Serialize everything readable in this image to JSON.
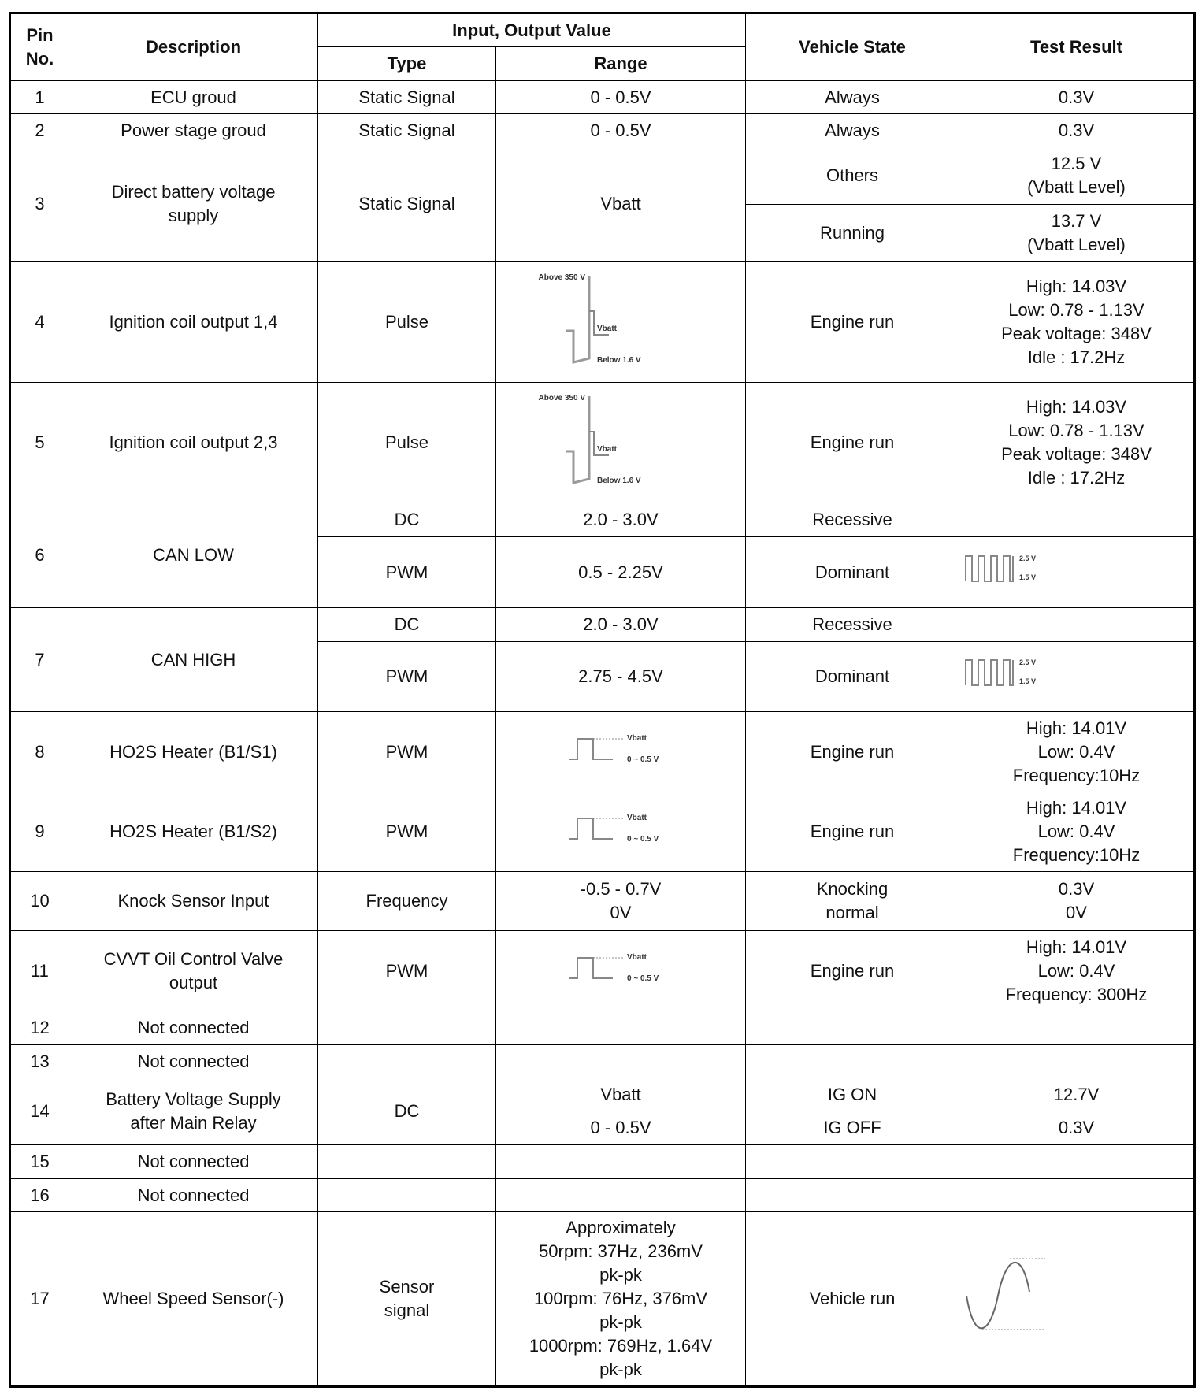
{
  "header": {
    "pin": "Pin\nNo.",
    "description": "Description",
    "io": "Input, Output Value",
    "type": "Type",
    "range": "Range",
    "vehicle_state": "Vehicle State",
    "test_result": "Test Result"
  },
  "rows": [
    {
      "pin": "1",
      "desc": "ECU groud",
      "type": "Static Signal",
      "range": "0 - 0.5V",
      "state": "Always",
      "result": "0.3V"
    },
    {
      "pin": "2",
      "desc": "Power stage groud",
      "type": "Static Signal",
      "range": "0 - 0.5V",
      "state": "Always",
      "result": "0.3V"
    },
    {
      "pin": "3",
      "desc": "Direct battery voltage\nsupply",
      "type": "Static Signal",
      "range": "Vbatt",
      "state_a": "Others",
      "result_a": "12.5 V\n(Vbatt Level)",
      "state_b": "Running",
      "result_b": "13.7 V\n(Vbatt Level)"
    },
    {
      "pin": "4",
      "desc": "Ignition coil output 1,4",
      "type": "Pulse",
      "wave": {
        "top": "Above 350 V",
        "mid": "Vbatt",
        "bottom": "Below 1.6 V"
      },
      "state": "Engine run",
      "result": "High: 14.03V\nLow: 0.78 - 1.13V\nPeak voltage: 348V\nIdle : 17.2Hz"
    },
    {
      "pin": "5",
      "desc": "Ignition coil output 2,3",
      "type": "Pulse",
      "wave": {
        "top": "Above 350 V",
        "mid": "Vbatt",
        "bottom": "Below 1.6 V"
      },
      "state": "Engine run",
      "result": "High: 14.03V\nLow: 0.78 - 1.13V\nPeak voltage: 348V\nIdle : 17.2Hz"
    },
    {
      "pin": "6",
      "desc": "CAN LOW",
      "type_a": "DC",
      "range_a": "2.0 - 3.0V",
      "state_a": "Recessive",
      "result_a": "",
      "type_b": "PWM",
      "range_b": "0.5 - 2.25V",
      "state_b": "Dominant",
      "wave": {
        "high": "2.5 V",
        "low": "1.5 V"
      }
    },
    {
      "pin": "7",
      "desc": "CAN HIGH",
      "type_a": "DC",
      "range_a": "2.0 - 3.0V",
      "state_a": "Recessive",
      "result_a": "",
      "type_b": "PWM",
      "range_b": "2.75 - 4.5V",
      "state_b": "Dominant",
      "wave": {
        "high": "2.5 V",
        "low": "1.5 V"
      }
    },
    {
      "pin": "8",
      "desc": "HO2S Heater (B1/S1)",
      "type": "PWM",
      "wave": {
        "high": "Vbatt",
        "low": "0 ~ 0.5 V"
      },
      "state": "Engine run",
      "result": "High: 14.01V\nLow: 0.4V\nFrequency:10Hz"
    },
    {
      "pin": "9",
      "desc": "HO2S Heater (B1/S2)",
      "type": "PWM",
      "wave": {
        "high": "Vbatt",
        "low": "0 ~ 0.5 V"
      },
      "state": "Engine run",
      "result": "High: 14.01V\nLow: 0.4V\nFrequency:10Hz"
    },
    {
      "pin": "10",
      "desc": "Knock Sensor Input",
      "type": "Frequency",
      "range": "-0.5 - 0.7V\n0V",
      "state": "Knocking\nnormal",
      "result": "0.3V\n0V"
    },
    {
      "pin": "11",
      "desc": "CVVT Oil Control Valve\noutput",
      "type": "PWM",
      "wave": {
        "high": "Vbatt",
        "low": "0 ~ 0.5 V"
      },
      "state": "Engine run",
      "result": "High: 14.01V\nLow: 0.4V\nFrequency: 300Hz"
    },
    {
      "pin": "12",
      "desc": "Not connected"
    },
    {
      "pin": "13",
      "desc": "Not connected"
    },
    {
      "pin": "14",
      "desc": "Battery Voltage Supply\nafter Main Relay",
      "type": "DC",
      "range_a": "Vbatt",
      "state_a": "IG ON",
      "result_a": "12.7V",
      "range_b": "0 - 0.5V",
      "state_b": "IG OFF",
      "result_b": "0.3V"
    },
    {
      "pin": "15",
      "desc": "Not connected"
    },
    {
      "pin": "16",
      "desc": "Not connected"
    },
    {
      "pin": "17",
      "desc": "Wheel Speed Sensor(-)",
      "type": "Sensor\nsignal",
      "range": "Approximately\n50rpm: 37Hz, 236mV\npk-pk\n100rpm: 76Hz, 376mV\npk-pk\n1000rpm: 769Hz, 1.64V\npk-pk",
      "state": "Vehicle run"
    }
  ]
}
